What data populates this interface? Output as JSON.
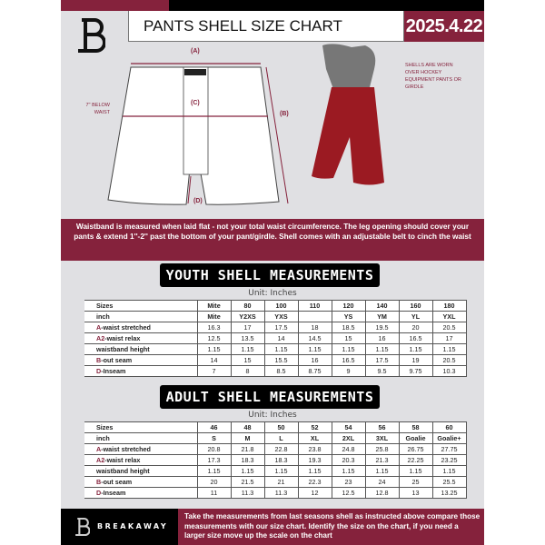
{
  "header": {
    "title": "PANTS SHELL SIZE CHART",
    "date": "2025.4.22"
  },
  "diagram": {
    "label_a": "(A)",
    "label_b": "(B)",
    "label_c": "(C)",
    "label_d": "(D)",
    "below_waist": "7'' BELOW WAIST",
    "worn_note": "SHELLS ARE WORN OVER HOCKEY EQUIPMENT PANTS OR GIRDLE"
  },
  "banner": "Waistband is measured when laid flat - not your total waist circumference. The leg opening should cover your pants & extend 1''-2'' past the bottom of your pant/girdle. Shell comes with an adjustable belt to cinch the waist",
  "youth": {
    "title": "YOUTH SHELL MEASUREMENTS",
    "unit": "Unit: Inches",
    "rows": [
      {
        "prefix": "",
        "label": "Sizes",
        "values": [
          "Mite",
          "80",
          "100",
          "110",
          "120",
          "140",
          "160",
          "180"
        ]
      },
      {
        "prefix": "",
        "label": "inch",
        "values": [
          "Mite",
          "Y2XS",
          "YXS",
          "",
          "YS",
          "YM",
          "YL",
          "YXL"
        ]
      },
      {
        "prefix": "A",
        "label": "-waist stretched",
        "values": [
          "16.3",
          "17",
          "17.5",
          "18",
          "18.5",
          "19.5",
          "20",
          "20.5"
        ]
      },
      {
        "prefix": "A2",
        "label": "-waist relax",
        "values": [
          "12.5",
          "13.5",
          "14",
          "14.5",
          "15",
          "16",
          "16.5",
          "17"
        ]
      },
      {
        "prefix": "",
        "label": "waistband height",
        "values": [
          "1.15",
          "1.15",
          "1.15",
          "1.15",
          "1.15",
          "1.15",
          "1.15",
          "1.15"
        ]
      },
      {
        "prefix": "B",
        "label": "-out seam",
        "values": [
          "14",
          "15",
          "15.5",
          "16",
          "16.5",
          "17.5",
          "19",
          "20.5"
        ]
      },
      {
        "prefix": "D",
        "label": "-Inseam",
        "values": [
          "7",
          "8",
          "8.5",
          "8.75",
          "9",
          "9.5",
          "9.75",
          "10.3"
        ]
      }
    ]
  },
  "adult": {
    "title": "ADULT SHELL MEASUREMENTS",
    "unit": "Unit: Inches",
    "rows": [
      {
        "prefix": "",
        "label": "Sizes",
        "values": [
          "46",
          "48",
          "50",
          "52",
          "54",
          "56",
          "58",
          "60"
        ]
      },
      {
        "prefix": "",
        "label": "inch",
        "values": [
          "S",
          "M",
          "L",
          "XL",
          "2XL",
          "3XL",
          "Goalie",
          "Goalie+"
        ]
      },
      {
        "prefix": "A",
        "label": "-waist stretched",
        "values": [
          "20.8",
          "21.8",
          "22.8",
          "23.8",
          "24.8",
          "25.8",
          "26.75",
          "27.75"
        ]
      },
      {
        "prefix": "A2",
        "label": "-waist relax",
        "values": [
          "17.3",
          "18.3",
          "18.3",
          "19.3",
          "20.3",
          "21.3",
          "22.25",
          "23.25"
        ]
      },
      {
        "prefix": "",
        "label": "waistband height",
        "values": [
          "1.15",
          "1.15",
          "1.15",
          "1.15",
          "1.15",
          "1.15",
          "1.15",
          "1.15"
        ]
      },
      {
        "prefix": "B",
        "label": "-out seam",
        "values": [
          "20",
          "21.5",
          "21",
          "22.3",
          "23",
          "24",
          "25",
          "25.5"
        ]
      },
      {
        "prefix": "D",
        "label": "-Inseam",
        "values": [
          "11",
          "11.3",
          "11.3",
          "12",
          "12.5",
          "12.8",
          "13",
          "13.25"
        ]
      }
    ]
  },
  "footer": {
    "brand": "BREAKAWAY",
    "text": "Take the measurements from last seasons shell as instructed above compare those measurements  with our size chart. Identify the size on the chart, if you need a larger size move up the scale on the chart"
  },
  "colors": {
    "accent": "#85223c",
    "dark": "#000000",
    "background": "#e0e0e3"
  }
}
